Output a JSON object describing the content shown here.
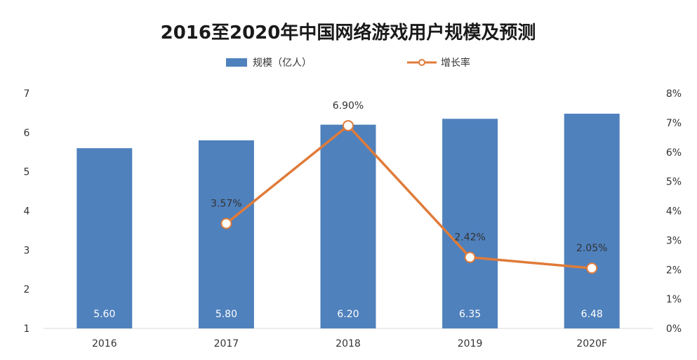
{
  "chart_data": {
    "type": "bar",
    "title": "2016至2020年中国网络游戏用户规模及预测",
    "categories": [
      "2016",
      "2017",
      "2018",
      "2019",
      "2020F"
    ],
    "series": [
      {
        "name": "规模（亿人）",
        "type": "bar",
        "axis": "left",
        "values": [
          5.6,
          5.8,
          6.2,
          6.35,
          6.48
        ],
        "labels": [
          "5.60",
          "5.80",
          "6.20",
          "6.35",
          "6.48"
        ],
        "color": "#4f81bd"
      },
      {
        "name": "增长率",
        "type": "line",
        "axis": "right",
        "values": [
          null,
          3.57,
          6.9,
          2.42,
          2.05
        ],
        "labels": [
          "",
          "3.57%",
          "6.90%",
          "2.42%",
          "2.05%"
        ],
        "color": "#e07b39"
      }
    ],
    "y_left": {
      "min": 1,
      "max": 7,
      "ticks": [
        "1",
        "2",
        "3",
        "4",
        "5",
        "6",
        "7"
      ]
    },
    "y_right": {
      "min": 0,
      "max": 8,
      "ticks": [
        "0%",
        "1%",
        "2%",
        "3%",
        "4%",
        "5%",
        "6%",
        "7%",
        "8%"
      ]
    },
    "grid": false,
    "legend_position": "top-center"
  }
}
